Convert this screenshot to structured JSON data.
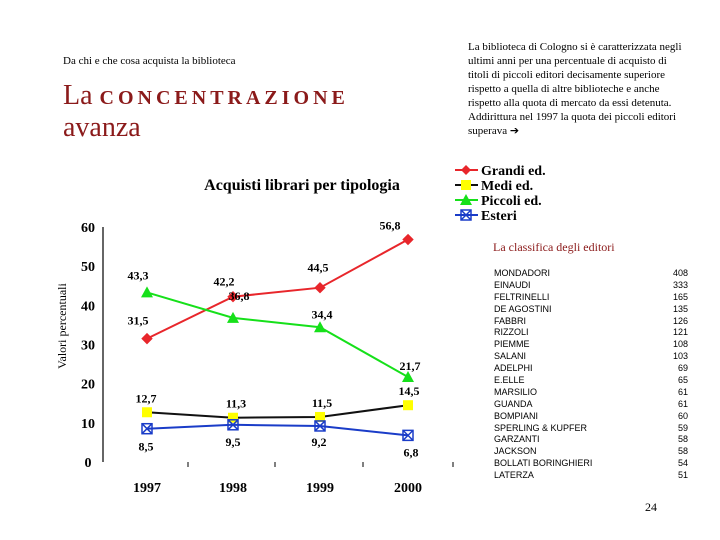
{
  "header": {
    "kicker": "Da chi e che cosa acquista la biblioteca",
    "title_word1": "La",
    "title_word2": "concentrazione",
    "title_word3": "avanza"
  },
  "intro_text": "La biblioteca di Cologno si è caratterizzata negli ultimi anni per una percentuale di acquisto di titoli di piccoli editori decisamente superiore rispetto a quella di altre biblioteche e anche rispetto alla quota di mercato da essi detenuta. Addirittura nel 1997 la quota dei piccoli editori superava",
  "intro_arrow": "➔",
  "chart_data": {
    "type": "line",
    "title": "Acquisti librari per tipologia",
    "ylabel": "Valori percentuali",
    "xlabel": "",
    "categories": [
      "1997",
      "1998",
      "1999",
      "2000"
    ],
    "ylim": [
      0,
      60
    ],
    "yticks": [
      "0",
      "10",
      "20",
      "30",
      "40",
      "50",
      "60"
    ],
    "series": [
      {
        "name": "Grandi ed.",
        "color": "#e8262b",
        "marker": "diamond",
        "values": [
          31.5,
          42.2,
          44.5,
          56.8
        ],
        "labels": [
          "31,5",
          "42,2",
          "44,5",
          "56,8"
        ]
      },
      {
        "name": "Medi ed.",
        "color": "#111111",
        "marker": "square",
        "marker_color": "#ffff00",
        "values": [
          12.7,
          11.3,
          11.5,
          14.5
        ],
        "labels": [
          "12,7",
          "11,3",
          "11,5",
          "14,5"
        ]
      },
      {
        "name": "Piccoli ed.",
        "color": "#16e01a",
        "marker": "triangle",
        "values": [
          43.3,
          36.8,
          34.4,
          21.7
        ],
        "labels": [
          "43,3",
          "36,8",
          "34,4",
          "21,7"
        ]
      },
      {
        "name": "Esteri",
        "color": "#1a3cc8",
        "marker": "x-square",
        "values": [
          8.5,
          9.5,
          9.2,
          6.8
        ],
        "labels": [
          "8,5",
          "9,5",
          "9,2",
          "6,8"
        ]
      }
    ]
  },
  "classifica": {
    "title": "La classifica degli editori",
    "rows": [
      {
        "name": "MONDADORI",
        "value": "408"
      },
      {
        "name": "EINAUDI",
        "value": "333"
      },
      {
        "name": "FELTRINELLI",
        "value": "165"
      },
      {
        "name": "DE AGOSTINI",
        "value": "135"
      },
      {
        "name": "FABBRI",
        "value": "126"
      },
      {
        "name": "RIZZOLI",
        "value": "121"
      },
      {
        "name": "PIEMME",
        "value": "108"
      },
      {
        "name": "SALANI",
        "value": "103"
      },
      {
        "name": "ADELPHI",
        "value": "69"
      },
      {
        "name": "E.ELLE",
        "value": "65"
      },
      {
        "name": "MARSILIO",
        "value": "61"
      },
      {
        "name": "GUANDA",
        "value": "61"
      },
      {
        "name": "BOMPIANI",
        "value": "60"
      },
      {
        "name": "SPERLING & KUPFER",
        "value": "59"
      },
      {
        "name": "GARZANTI",
        "value": "58"
      },
      {
        "name": "JACKSON",
        "value": "58"
      },
      {
        "name": "BOLLATI BORINGHIERI",
        "value": "54"
      },
      {
        "name": "LATERZA",
        "value": "51"
      }
    ]
  },
  "page_number": "24"
}
